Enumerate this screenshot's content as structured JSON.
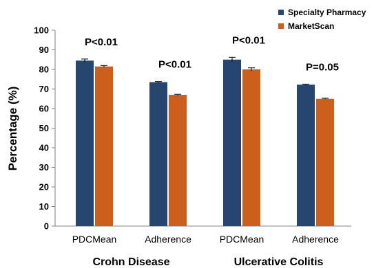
{
  "chart_data": {
    "type": "bar",
    "ylabel": "Percentage  (%)",
    "ylim": [
      0,
      100
    ],
    "yticks": [
      0,
      10,
      20,
      30,
      40,
      50,
      60,
      70,
      80,
      90,
      100
    ],
    "categories": [
      "PDCMean",
      "Adherence",
      "PDCMean",
      "Adherence"
    ],
    "groups": [
      {
        "label": "Crohn Disease",
        "categories": [
          0,
          1
        ]
      },
      {
        "label": "Ulcerative Colitis",
        "categories": [
          2,
          3
        ]
      }
    ],
    "series": [
      {
        "name": "Specialty Pharmacy",
        "color": "#27466f",
        "values": [
          84.5,
          73.5,
          85,
          72.2
        ],
        "errors": [
          0.8,
          0.3,
          1.2,
          0.3
        ]
      },
      {
        "name": "MarketScan",
        "color": "#cc5f1c",
        "values": [
          81.5,
          67,
          80,
          65
        ],
        "errors": [
          0.5,
          0.3,
          0.8,
          0.3
        ]
      }
    ],
    "annotations": [
      "P<0.01",
      "P<0.01",
      "P<0.01",
      "P=0.05"
    ],
    "legend": "top-right",
    "grid": false
  }
}
